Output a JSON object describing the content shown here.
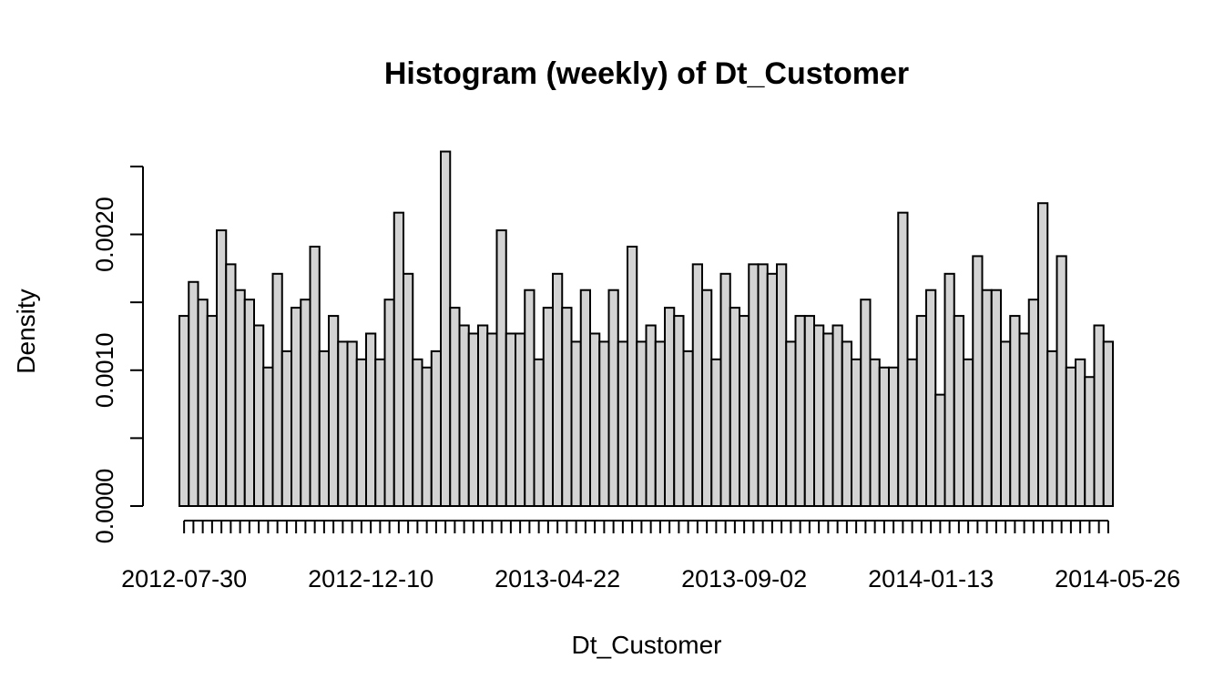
{
  "chart_data": {
    "type": "bar",
    "title": "Histogram (weekly) of Dt_Customer",
    "xlabel": "Dt_Customer",
    "ylabel": "Density",
    "bin_width": "1 week",
    "x_start": "2012-07-30",
    "x_tick_labels": [
      "2012-07-30",
      "2012-12-10",
      "2013-04-22",
      "2013-09-02",
      "2014-01-13",
      "2014-05-26"
    ],
    "y_tick_labels": [
      "0.0000",
      "0.0010",
      "0.0020"
    ],
    "y_tick_values": [
      0,
      0.0005,
      0.001,
      0.0015,
      0.002,
      0.0025
    ],
    "ylim": [
      0,
      0.0026
    ],
    "values": [
      0.0014,
      0.00165,
      0.00152,
      0.0014,
      0.00203,
      0.00178,
      0.00159,
      0.00152,
      0.00133,
      0.00102,
      0.00171,
      0.00114,
      0.00146,
      0.00152,
      0.00191,
      0.00114,
      0.0014,
      0.00121,
      0.00121,
      0.00108,
      0.00127,
      0.00108,
      0.00152,
      0.00216,
      0.00171,
      0.00108,
      0.00102,
      0.00114,
      0.00261,
      0.00146,
      0.00133,
      0.00127,
      0.00133,
      0.00127,
      0.00203,
      0.00127,
      0.00127,
      0.00159,
      0.00108,
      0.00146,
      0.00171,
      0.00146,
      0.00121,
      0.00159,
      0.00127,
      0.00121,
      0.00159,
      0.00121,
      0.00191,
      0.00121,
      0.00133,
      0.00121,
      0.00146,
      0.0014,
      0.00114,
      0.00178,
      0.00159,
      0.00108,
      0.00171,
      0.00146,
      0.0014,
      0.00178,
      0.00178,
      0.00171,
      0.00178,
      0.00121,
      0.0014,
      0.0014,
      0.00133,
      0.00127,
      0.00133,
      0.00121,
      0.00108,
      0.00152,
      0.00108,
      0.00102,
      0.00102,
      0.00216,
      0.00108,
      0.0014,
      0.00159,
      0.00082,
      0.00171,
      0.0014,
      0.00108,
      0.00184,
      0.00159,
      0.00159,
      0.00121,
      0.0014,
      0.00127,
      0.00152,
      0.00223,
      0.00114,
      0.00184,
      0.00102,
      0.00108,
      0.00095,
      0.00133,
      0.00121
    ],
    "grid": false,
    "legend": "none",
    "colors": {
      "bar_fill": "#d3d3d3",
      "bar_stroke": "#000000"
    }
  }
}
